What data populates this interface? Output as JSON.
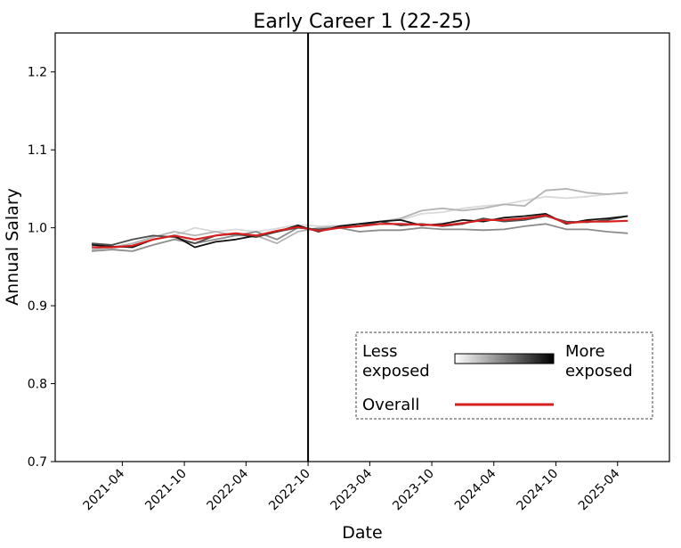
{
  "chart_data": {
    "type": "line",
    "title": "Early Career 1 (22-25)",
    "xlabel": "Date",
    "ylabel": "Annual Salary",
    "x_tick_labels": [
      "2021-04",
      "2021-10",
      "2022-04",
      "2022-10",
      "2023-04",
      "2023-10",
      "2024-04",
      "2024-10",
      "2025-04"
    ],
    "y_tick_labels": [
      "0.7",
      "0.8",
      "0.9",
      "1.0",
      "1.1",
      "1.2"
    ],
    "ylim": [
      0.7,
      1.25
    ],
    "xlim": [
      "2020-09-15",
      "2025-09-01"
    ],
    "grid": false,
    "reference_line_x": "2022-10",
    "legend": {
      "placement": "lower-right",
      "gradient_left_label": "Less\nexposed",
      "gradient_right_label": "More\nexposed",
      "overall_label": "Overall"
    },
    "colors": {
      "overall": "#d62020",
      "reference_line": "#000000",
      "quintile_1": "#d9d9d9",
      "quintile_2": "#b3b3b3",
      "quintile_3": "#8c8c8c",
      "quintile_4": "#4d4d4d",
      "quintile_5": "#111111"
    },
    "x": [
      "2021-01",
      "2021-03",
      "2021-05",
      "2021-07",
      "2021-09",
      "2021-11",
      "2022-01",
      "2022-03",
      "2022-05",
      "2022-07",
      "2022-09",
      "2022-11",
      "2023-01",
      "2023-03",
      "2023-05",
      "2023-07",
      "2023-09",
      "2023-11",
      "2024-01",
      "2024-03",
      "2024-05",
      "2024-07",
      "2024-09",
      "2024-11",
      "2025-01",
      "2025-03",
      "2025-05"
    ],
    "series": [
      {
        "color_key": "quintile_1",
        "values": [
          0.975,
          0.973,
          0.978,
          0.985,
          0.99,
          1.0,
          0.995,
          0.998,
          0.995,
          0.999,
          1.004,
          1.002,
          1.003,
          1.005,
          1.008,
          1.01,
          1.018,
          1.02,
          1.025,
          1.028,
          1.03,
          1.035,
          1.04,
          1.038,
          1.04,
          1.043,
          1.045
        ]
      },
      {
        "color_key": "quintile_2",
        "values": [
          0.972,
          0.975,
          0.98,
          0.988,
          0.995,
          0.99,
          0.995,
          0.99,
          0.99,
          0.98,
          0.995,
          1.0,
          1.002,
          1.005,
          1.008,
          1.012,
          1.022,
          1.025,
          1.022,
          1.025,
          1.03,
          1.028,
          1.048,
          1.05,
          1.045,
          1.043,
          1.045
        ]
      },
      {
        "color_key": "quintile_3",
        "values": [
          0.97,
          0.972,
          0.97,
          0.978,
          0.985,
          0.98,
          0.985,
          0.99,
          0.995,
          0.985,
          1.0,
          0.998,
          1.0,
          0.995,
          0.997,
          0.997,
          1.0,
          0.998,
          0.998,
          0.997,
          0.998,
          1.002,
          1.005,
          0.998,
          0.998,
          0.995,
          0.993
        ]
      },
      {
        "color_key": "quintile_4",
        "values": [
          0.98,
          0.978,
          0.985,
          0.99,
          0.988,
          0.98,
          0.99,
          0.992,
          0.988,
          0.995,
          1.0,
          0.998,
          1.0,
          1.002,
          1.008,
          1.003,
          1.005,
          1.002,
          1.005,
          1.012,
          1.008,
          1.01,
          1.015,
          1.008,
          1.007,
          1.01,
          1.015
        ]
      },
      {
        "color_key": "quintile_5",
        "values": [
          0.978,
          0.976,
          0.975,
          0.985,
          0.99,
          0.975,
          0.982,
          0.985,
          0.99,
          0.995,
          1.003,
          0.995,
          1.002,
          1.005,
          1.008,
          1.01,
          1.003,
          1.005,
          1.01,
          1.008,
          1.013,
          1.015,
          1.018,
          1.005,
          1.01,
          1.012,
          1.015
        ]
      },
      {
        "color_key": "overall",
        "values": [
          0.975,
          0.975,
          0.977,
          0.985,
          0.99,
          0.985,
          0.99,
          0.993,
          0.99,
          0.996,
          1.001,
          0.996,
          1.0,
          1.002,
          1.005,
          1.005,
          1.004,
          1.003,
          1.006,
          1.01,
          1.01,
          1.012,
          1.016,
          1.006,
          1.008,
          1.008,
          1.009
        ]
      }
    ]
  }
}
